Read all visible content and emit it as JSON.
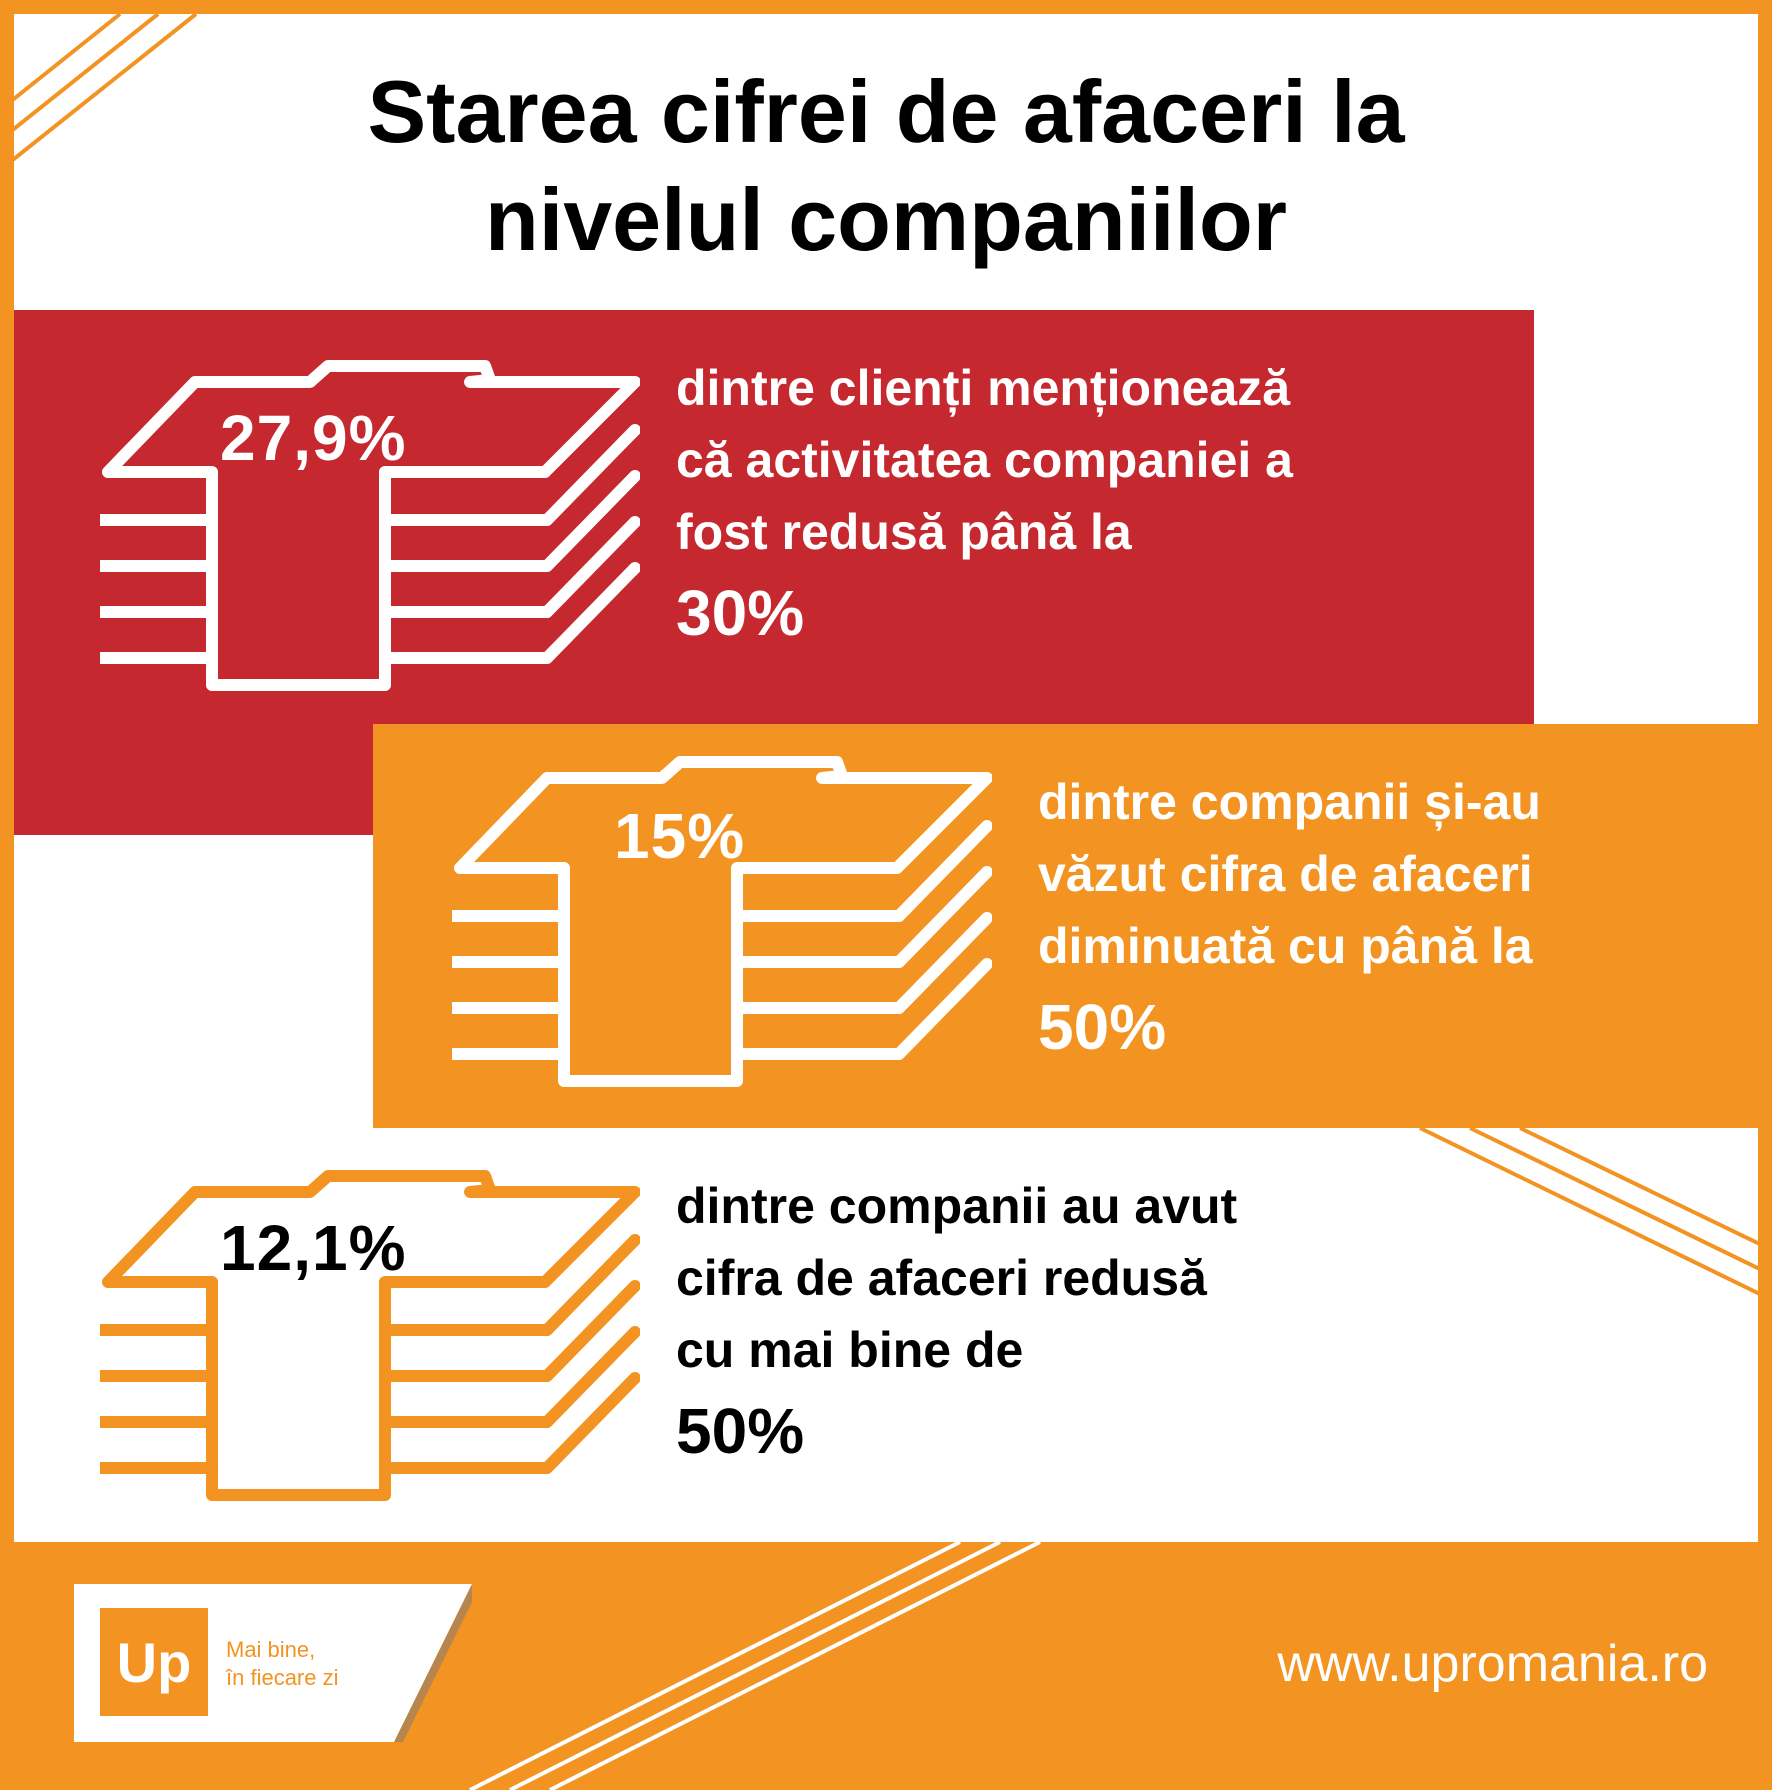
{
  "colors": {
    "background": "#F39322",
    "panel": "#FFFFFF",
    "red": "#C5282F",
    "orange": "#F39322",
    "white": "#FFFFFF",
    "black": "#000000"
  },
  "title": {
    "line1": "Starea cifrei de afaceri la",
    "line2": "nivelul companiilor"
  },
  "stats": [
    {
      "icon": "money-stack-icon",
      "value": "27,9%",
      "lines": [
        "dintre clienți menționează",
        "că activitatea companiei a",
        "fost redusă până la"
      ],
      "threshold": "30%"
    },
    {
      "icon": "money-stack-icon",
      "value": "15%",
      "lines": [
        "dintre companii și-au",
        "văzut cifra de afaceri",
        "diminuată cu până la"
      ],
      "threshold": "50%"
    },
    {
      "icon": "money-stack-icon",
      "value": "12,1%",
      "lines": [
        "dintre companii au avut",
        "cifra de afaceri redusă",
        "cu mai bine de"
      ],
      "threshold": "50%"
    }
  ],
  "footer": {
    "logo_text": "Up",
    "tagline_line1": "Mai bine,",
    "tagline_line2": "în fiecare zi",
    "url": "www.upromania.ro"
  }
}
